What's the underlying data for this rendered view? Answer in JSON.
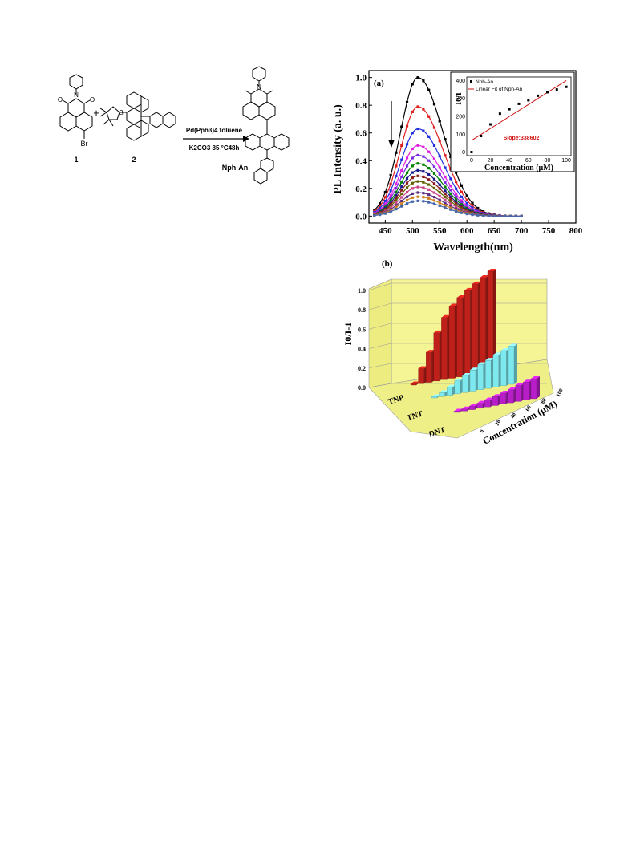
{
  "scheme": {
    "reagents_line1": "Pd(Pph3)4 toluene",
    "reagents_line2": "K2CO3 85 °C48h",
    "plus": "+",
    "label_1": "1",
    "label_2": "2",
    "product_label": "Nph-An",
    "atom_N": "N",
    "atom_O": "O",
    "atom_B": "B",
    "atom_Br": "Br"
  },
  "chart_data": [
    {
      "type": "line",
      "panel_label": "(a)",
      "xlabel": "Wavelength(nm)",
      "ylabel": "PL Intensity (a. u.)",
      "xlim": [
        420,
        800
      ],
      "ylim": [
        -0.05,
        1.05
      ],
      "xticks": [
        "450",
        "500",
        "550",
        "600",
        "650",
        "700",
        "750",
        "800"
      ],
      "yticks": [
        "0.0",
        "0.2",
        "0.4",
        "0.6",
        "0.8",
        "1.0"
      ],
      "grid": false,
      "peak_wavelength": 510,
      "curve_x_range": [
        430,
        700
      ],
      "series": [
        {
          "peak": 1.0,
          "color": "#000000"
        },
        {
          "peak": 0.79,
          "color": "#e02020"
        },
        {
          "peak": 0.63,
          "color": "#2030e0"
        },
        {
          "peak": 0.51,
          "color": "#e020e0"
        },
        {
          "peak": 0.44,
          "color": "#7b2be0"
        },
        {
          "peak": 0.38,
          "color": "#008000"
        },
        {
          "peak": 0.33,
          "color": "#1a1a8c"
        },
        {
          "peak": 0.29,
          "color": "#8b1a1a"
        },
        {
          "peak": 0.25,
          "color": "#606000"
        },
        {
          "peak": 0.21,
          "color": "#cc4488"
        },
        {
          "peak": 0.17,
          "color": "#5a2d82"
        },
        {
          "peak": 0.14,
          "color": "#d08020"
        },
        {
          "peak": 0.11,
          "color": "#4466aa"
        }
      ],
      "inset": {
        "type": "scatter",
        "xlabel": "Concentration (μM)",
        "ylabel": "I0/I",
        "xlim": [
          -5,
          105
        ],
        "ylim": [
          -20,
          420
        ],
        "xticks": [
          "0",
          "20",
          "40",
          "60",
          "80",
          "100"
        ],
        "yticks": [
          "0",
          "100",
          "200",
          "300",
          "400"
        ],
        "legend": [
          "Nph-An",
          "Linear Fit of Nph-An"
        ],
        "legend_position": "top-left",
        "x": [
          0,
          10,
          20,
          30,
          40,
          50,
          60,
          70,
          80,
          90,
          100
        ],
        "y": [
          0,
          90,
          155,
          215,
          240,
          270,
          290,
          315,
          335,
          350,
          365
        ],
        "fit": {
          "x": [
            0,
            100
          ],
          "y": [
            65,
            400
          ],
          "color": "#d01010"
        },
        "annotation": "Slope:338602"
      }
    },
    {
      "type": "bar",
      "panel_label": "(b)",
      "ylabel": "I0/I-1",
      "xlabel": "Concentration (μM)",
      "zticks": [
        "0.0",
        "0.2",
        "0.4",
        "0.6",
        "0.8",
        "1.0"
      ],
      "xticks": [
        "0",
        "20",
        "40",
        "60",
        "80",
        "100"
      ],
      "categories": [
        "0",
        "10",
        "20",
        "30",
        "40",
        "50",
        "60",
        "70",
        "80",
        "90",
        "100"
      ],
      "series": [
        {
          "name": "TNP",
          "color": "#c0201a",
          "values": [
            0.0,
            0.15,
            0.3,
            0.48,
            0.62,
            0.72,
            0.79,
            0.85,
            0.9,
            0.95,
            1.0
          ]
        },
        {
          "name": "TNT",
          "color": "#7de8ee",
          "values": [
            0.0,
            0.04,
            0.08,
            0.13,
            0.17,
            0.21,
            0.25,
            0.28,
            0.32,
            0.35,
            0.38
          ]
        },
        {
          "name": "DNT",
          "color": "#b81ec8",
          "values": [
            0.0,
            0.02,
            0.035,
            0.05,
            0.07,
            0.09,
            0.11,
            0.13,
            0.16,
            0.18,
            0.2
          ]
        }
      ]
    }
  ]
}
